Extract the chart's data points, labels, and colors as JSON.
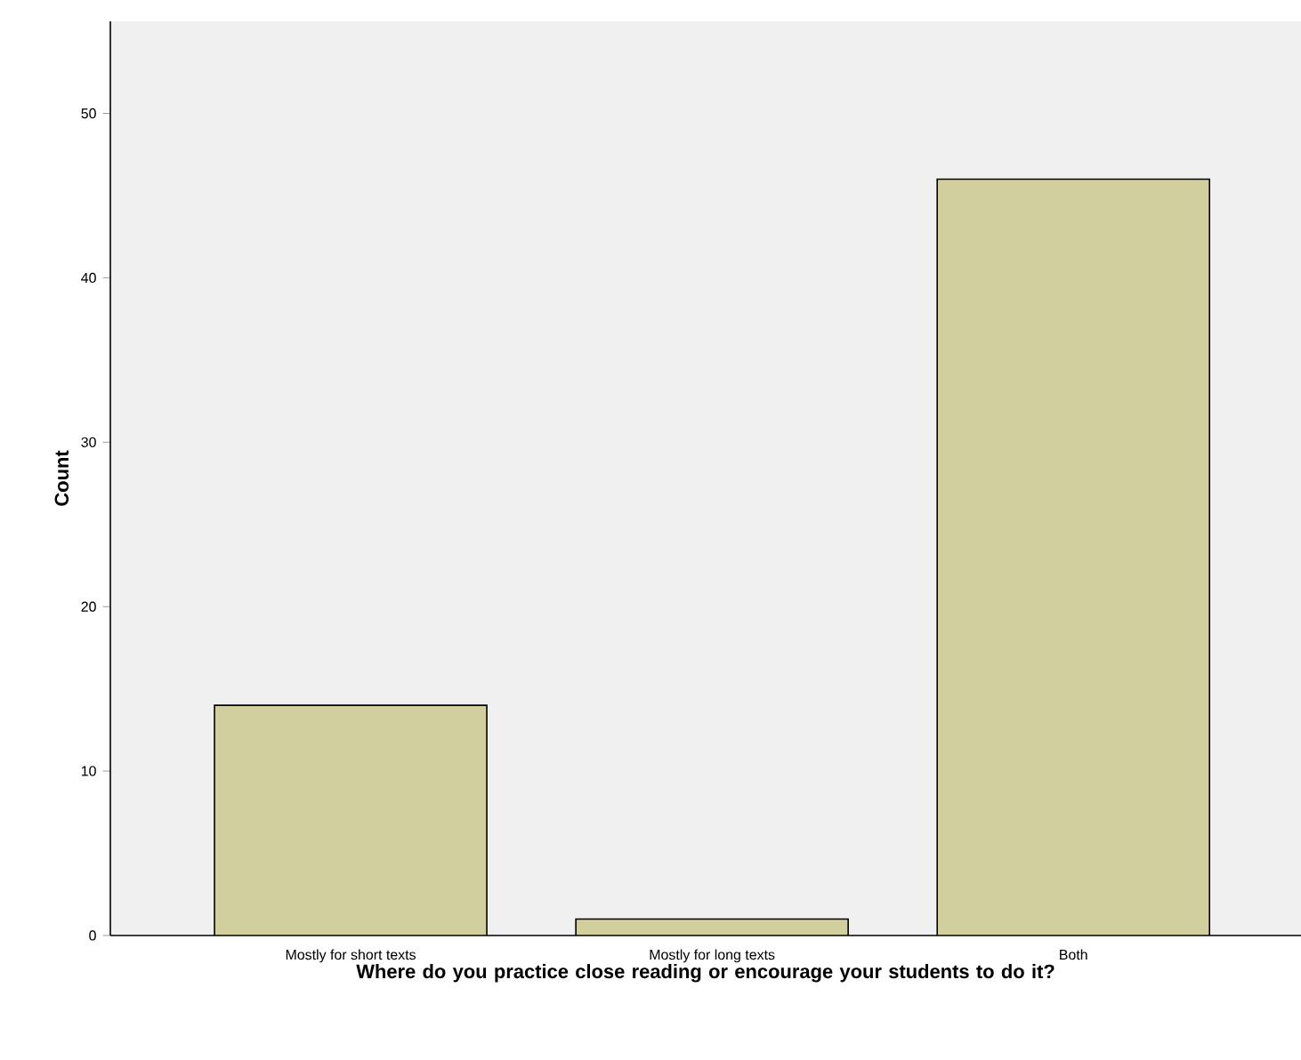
{
  "chart_data": {
    "type": "bar",
    "xlabel": "Where do you practice close reading or encourage your students to do it?",
    "ylabel": "Count",
    "categories": [
      "Mostly for short texts",
      "Mostly for long texts",
      "Both"
    ],
    "values": [
      14,
      1,
      46
    ],
    "color": "#d2cf9e",
    "ylim": [
      0,
      55.6
    ],
    "yticks": [
      0,
      10,
      20,
      30,
      40,
      50
    ]
  }
}
